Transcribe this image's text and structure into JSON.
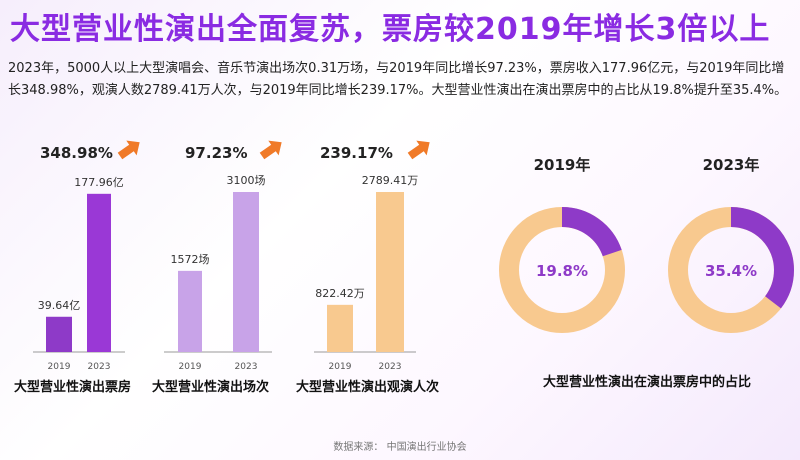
{
  "title": "大型营业性演出全面复苏，票房较2019年增长3倍以上",
  "description": "2023年，5000人以上大型演唱会、音乐节演出场次0.31万场，与2019年同比增长97.23%，票房收入177.96亿元，与2019年同比增长348.98%，观演人数2789.41万人次，与2019年同比增长239.17%。大型营业性演出在演出票房中的占比从19.8%提升至35.4%。",
  "source": "数据来源：  中国演出行业协会",
  "colors": {
    "accent": "#8a2be2",
    "bar_2019": "#8e3ac8",
    "bar_2023": "#9a38d6",
    "light_purple": "#c8a3e8",
    "orange": "#f8c98f",
    "arrow": "#f07a28"
  },
  "chart_data": [
    {
      "type": "bar",
      "title": "大型营业性演出票房",
      "growth": "348.98%",
      "categories": [
        "2019",
        "2023"
      ],
      "values": [
        39.64,
        177.96
      ],
      "value_labels": [
        "39.64亿",
        "177.96亿"
      ],
      "ylim": [
        0,
        180
      ]
    },
    {
      "type": "bar",
      "title": "大型营业性演出场次",
      "growth": "97.23%",
      "categories": [
        "2019",
        "2023"
      ],
      "values": [
        1572,
        3100
      ],
      "value_labels": [
        "1572场",
        "3100场"
      ],
      "ylim": [
        0,
        3100
      ]
    },
    {
      "type": "bar",
      "title": "大型营业性演出观演人次",
      "growth": "239.17%",
      "categories": [
        "2019",
        "2023"
      ],
      "values": [
        822.42,
        2789.41
      ],
      "value_labels": [
        "822.42万",
        "2789.41万"
      ],
      "ylim": [
        0,
        2789.41
      ]
    },
    {
      "type": "pie",
      "title": "大型营业性演出在演出票房中的占比",
      "charts": [
        {
          "label": "2019年",
          "value": 19.8,
          "center_label": "19.8%"
        },
        {
          "label": "2023年",
          "value": 35.4,
          "center_label": "35.4%"
        }
      ]
    }
  ]
}
